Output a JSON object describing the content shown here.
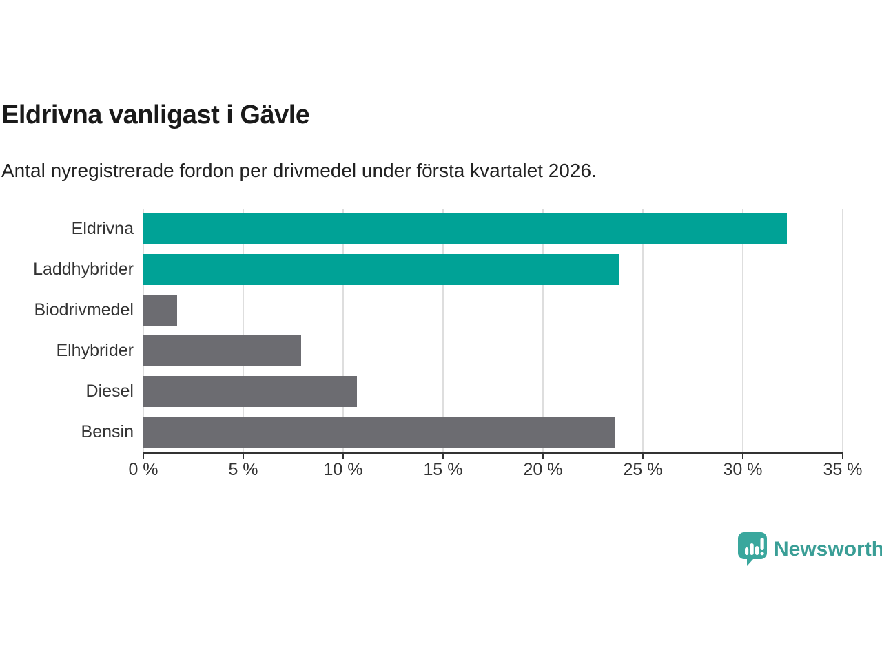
{
  "header": {
    "title": "Eldrivna vanligast i Gävle",
    "subtitle": "Antal nyregistrerade fordon per drivmedel under första kvartalet 2026."
  },
  "chart_data": {
    "type": "bar",
    "orientation": "horizontal",
    "title": "Eldrivna vanligast i Gävle",
    "subtitle": "Antal nyregistrerade fordon per drivmedel under första kvartalet 2026.",
    "categories": [
      "Eldrivna",
      "Laddhybrider",
      "Biodrivmedel",
      "Elhybrider",
      "Diesel",
      "Bensin"
    ],
    "values": [
      32.2,
      23.8,
      1.7,
      7.9,
      10.7,
      23.6
    ],
    "unit": "%",
    "bar_colors": [
      "#00a296",
      "#00a296",
      "#6c6c71",
      "#6c6c71",
      "#6c6c71",
      "#6c6c71"
    ],
    "xlabel": "",
    "ylabel": "",
    "xlim": [
      0,
      35
    ],
    "x_tick_values": [
      0,
      5,
      10,
      15,
      20,
      25,
      30,
      35
    ],
    "x_tick_labels": [
      "0 %",
      "5 %",
      "10 %",
      "15 %",
      "20 %",
      "25 %",
      "30 %",
      "35 %"
    ],
    "grid": true,
    "legend": false
  },
  "colors": {
    "accent_teal": "#00a296",
    "neutral_gray": "#6c6c71",
    "gridline": "#dedede",
    "axis": "#333333",
    "text": "#333333",
    "title_text": "#1a1a1a",
    "logo_icon": "#3aa79d",
    "logo_text": "#3a9e96"
  },
  "footer": {
    "brand": "Newsworthy"
  }
}
